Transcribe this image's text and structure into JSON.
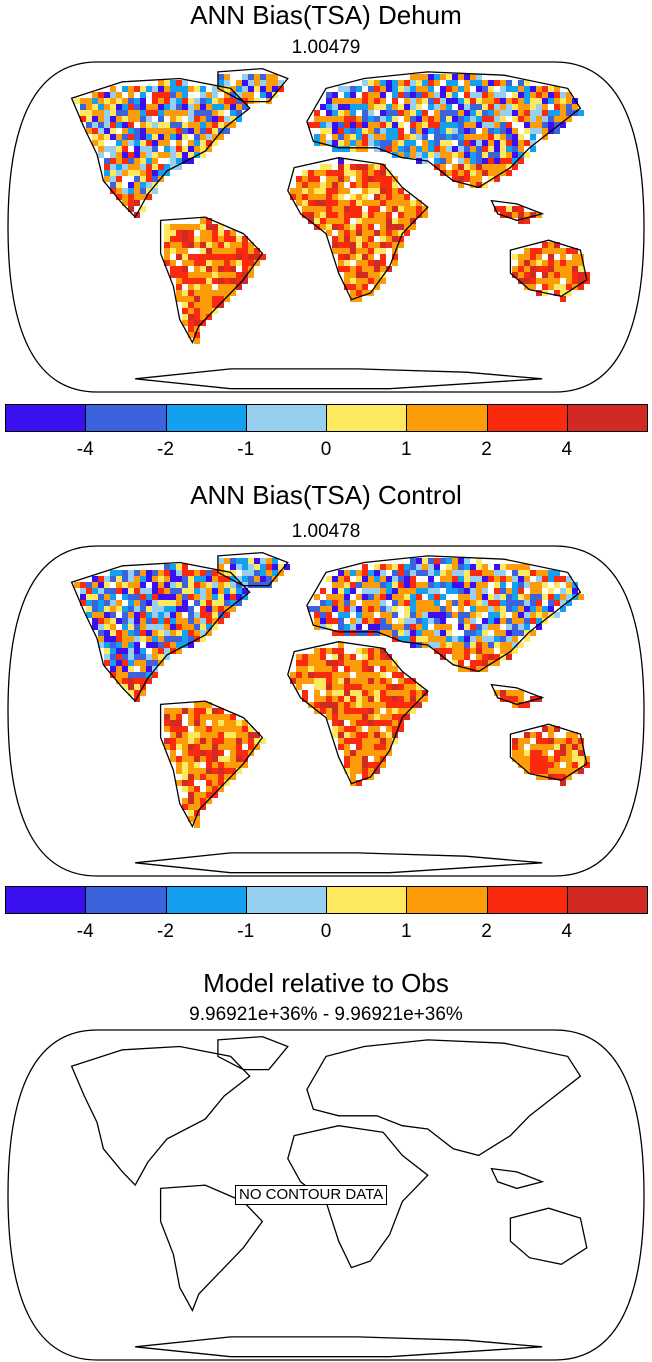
{
  "panels": [
    {
      "title": "ANN Bias(TSA) Dehum",
      "subtitle": "1.00479"
    },
    {
      "title": "ANN Bias(TSA) Control",
      "subtitle": "1.00478"
    },
    {
      "title": "Model relative to Obs",
      "subtitle": "9.96921e+36% - 9.96921e+36%",
      "message": "NO CONTOUR DATA"
    }
  ],
  "colorbar": {
    "colors": [
      "#3a10f0",
      "#3d63dc",
      "#14a0ee",
      "#96cff0",
      "#fde960",
      "#fb9c08",
      "#fa2a0e",
      "#d02a22"
    ],
    "ticks": [
      "-4",
      "-2",
      "-1",
      "0",
      "1",
      "2",
      "4"
    ]
  },
  "palette_weights": {
    "warm": [
      "#fb9c08",
      "#fb9c08",
      "#fb9c08",
      "#fa2a0e",
      "#fa2a0e",
      "#fde960",
      "#d02a22"
    ],
    "mixed": [
      "#fb9c08",
      "#fb9c08",
      "#fde960",
      "#fa2a0e",
      "#96cff0",
      "#14a0ee",
      "#3d63dc",
      "#3a10f0"
    ]
  }
}
